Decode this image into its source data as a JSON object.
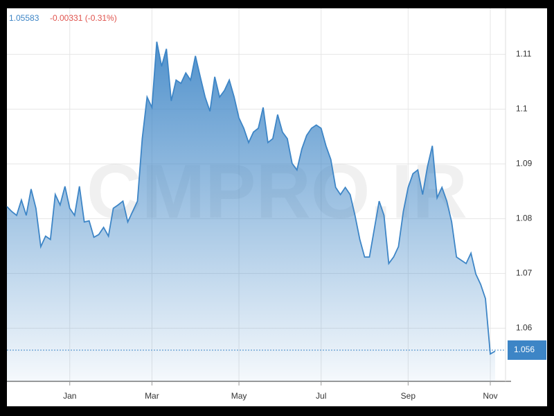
{
  "chart_data": {
    "type": "area",
    "price": "1.05583",
    "change": "-0.00331 (-0.31%)",
    "watermark": "CMPRO.IR",
    "categories": [
      null,
      null,
      null,
      null,
      null,
      null,
      null,
      null,
      null,
      null,
      null,
      null,
      null,
      "Jan",
      null,
      null,
      null,
      null,
      null,
      null,
      null,
      null,
      null,
      null,
      null,
      null,
      null,
      null,
      null,
      null,
      "Mar",
      null,
      null,
      null,
      null,
      null,
      null,
      null,
      null,
      null,
      null,
      null,
      null,
      null,
      null,
      null,
      null,
      null,
      "May",
      null,
      null,
      null,
      null,
      null,
      null,
      null,
      null,
      null,
      null,
      null,
      null,
      null,
      null,
      null,
      null,
      "Jul",
      null,
      null,
      null,
      null,
      null,
      null,
      null,
      null,
      null,
      null,
      null,
      null,
      null,
      null,
      null,
      null,
      null,
      "Sep",
      null,
      null,
      null,
      null,
      null,
      null,
      null,
      null,
      null,
      null,
      null,
      null,
      null,
      null,
      null,
      null,
      "Nov",
      null
    ],
    "series": [
      {
        "color": "#3d85c6",
        "values": [
          1.0822,
          1.0813,
          1.0806,
          1.0834,
          1.0806,
          1.0854,
          1.0819,
          1.0749,
          1.0768,
          1.0762,
          1.0844,
          1.0825,
          1.0859,
          1.0819,
          1.0806,
          1.0859,
          1.0794,
          1.0796,
          1.0766,
          1.0771,
          1.0784,
          1.0768,
          1.0819,
          1.0825,
          1.0832,
          1.0794,
          1.0813,
          1.0832,
          1.0946,
          1.1022,
          1.1003,
          1.1123,
          1.1078,
          1.111,
          1.1015,
          1.1053,
          1.1047,
          1.1066,
          1.1053,
          1.1097,
          1.1059,
          1.1022,
          1.0996,
          1.1059,
          1.1022,
          1.1034,
          1.1053,
          1.1022,
          1.0984,
          1.0965,
          1.0939,
          1.0958,
          1.0965,
          1.1003,
          1.0939,
          1.0946,
          1.099,
          1.0958,
          1.0946,
          1.0901,
          1.0889,
          1.0927,
          1.0952,
          1.0965,
          1.0971,
          1.0965,
          1.0933,
          1.0908,
          1.0857,
          1.0844,
          1.0857,
          1.0844,
          1.0806,
          1.0762,
          1.073,
          1.073,
          1.0781,
          1.0832,
          1.0806,
          1.0718,
          1.073,
          1.0749,
          1.0813,
          1.0857,
          1.0882,
          1.0889,
          1.0844,
          1.0895,
          1.0933,
          1.0838,
          1.0857,
          1.0832,
          1.0794,
          1.073,
          1.0724,
          1.0718,
          1.0737,
          1.0699,
          1.068,
          1.0654,
          1.0553,
          1.0558
        ]
      }
    ],
    "ylim": [
      1.0503,
      1.1184
    ],
    "yticks": [
      1.06,
      1.07,
      1.08,
      1.09,
      1.1,
      1.11
    ],
    "last_label": {
      "value": 1.056,
      "label": "1.056"
    },
    "grid": true
  }
}
